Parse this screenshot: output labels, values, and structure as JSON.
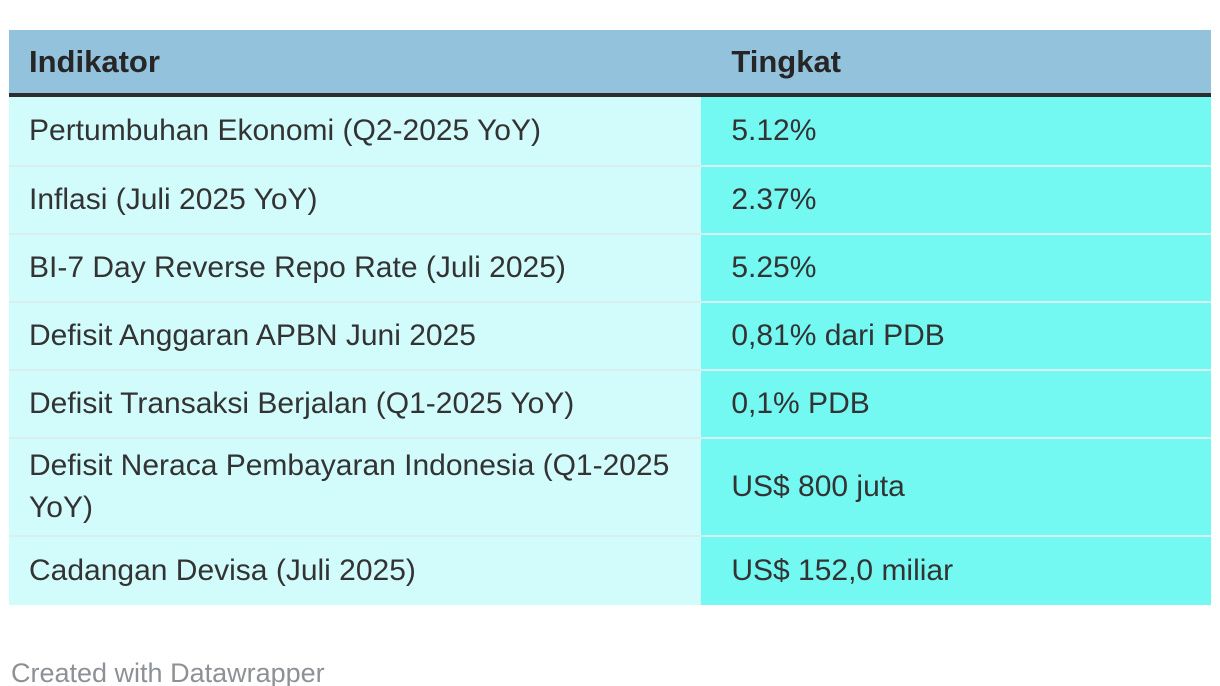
{
  "chart_data": {
    "type": "table",
    "columns": [
      "Indikator",
      "Tingkat"
    ],
    "rows": [
      [
        "Pertumbuhan Ekonomi (Q2-2025 YoY)",
        "5.12%"
      ],
      [
        "Inflasi (Juli 2025 YoY)",
        "2.37%"
      ],
      [
        "BI-7 Day Reverse Repo Rate (Juli 2025)",
        "5.25%"
      ],
      [
        "Defisit Anggaran APBN Juni 2025",
        "0,81% dari PDB"
      ],
      [
        "Defisit Transaksi Berjalan (Q1-2025 YoY)",
        "0,1% PDB"
      ],
      [
        "Defisit Neraca Pembayaran Indonesia (Q1-2025 YoY)",
        "US$ 800 juta"
      ],
      [
        "Cadangan Devisa (Juli 2025)",
        "US$ 152,0 miliar"
      ]
    ],
    "title": "",
    "legend_position": "none",
    "grid": "row-separators"
  },
  "footer": {
    "credit": "Created with Datawrapper"
  },
  "colors": {
    "header_bg": "#93c2dd",
    "indikator_col_bg": "#d2fbfb",
    "tingkat_col_bg": "#73f8f2",
    "header_border": "#2d2d2d",
    "row_separator": "#d7f0ef",
    "header_text": "#262626",
    "cell_text": "#333333",
    "credit_text": "#8d9196",
    "page_bg": "#ffffff"
  }
}
